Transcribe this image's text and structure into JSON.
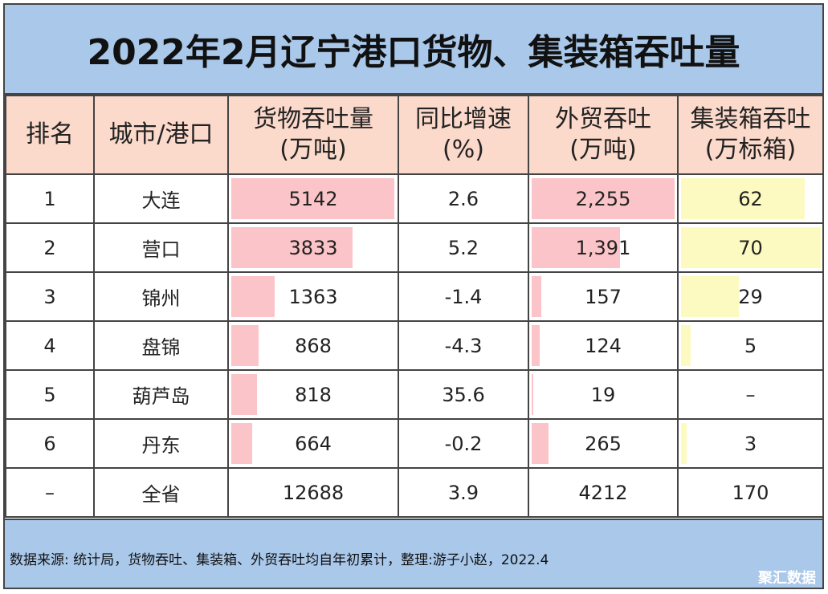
{
  "title": "2022年2月辽宁港口货物、集装箱吞吐量",
  "headers": {
    "rank": "排名",
    "city": "城市/港口",
    "cargo_l1": "货物吞吐量",
    "cargo_l2": "(万吨)",
    "growth_l1": "同比增速",
    "growth_l2": "(%)",
    "trade_l1": "外贸吞吐",
    "trade_l2": "(万吨)",
    "container_l1": "集装箱吞吐",
    "container_l2": "(万标箱)"
  },
  "rows": [
    {
      "rank": "1",
      "city": "大连",
      "cargo": "5142",
      "growth": "2.6",
      "trade": "2,255",
      "container": "62"
    },
    {
      "rank": "2",
      "city": "营口",
      "cargo": "3833",
      "growth": "5.2",
      "trade": "1,391",
      "container": "70"
    },
    {
      "rank": "3",
      "city": "锦州",
      "cargo": "1363",
      "growth": "-1.4",
      "trade": "157",
      "container": "29"
    },
    {
      "rank": "4",
      "city": "盘锦",
      "cargo": "868",
      "growth": "-4.3",
      "trade": "124",
      "container": "5"
    },
    {
      "rank": "5",
      "city": "葫芦岛",
      "cargo": "818",
      "growth": "35.6",
      "trade": "19",
      "container": "–"
    },
    {
      "rank": "6",
      "city": "丹东",
      "cargo": "664",
      "growth": "-0.2",
      "trade": "265",
      "container": "3"
    }
  ],
  "total": {
    "rank": "–",
    "city": "全省",
    "cargo": "12688",
    "growth": "3.9",
    "trade": "4212",
    "container": "170"
  },
  "footer": {
    "note": "数据来源: 统计局，货物吞吐、集装箱、外贸吞吐均自年初累计，整理:游子小赵，2022.4",
    "brand": "聚汇数据"
  },
  "colors": {
    "header_bg": "#fbd9cb",
    "title_bg": "#a9c8ea",
    "bar_red": "#fbc4c8",
    "bar_yellow": "#fcfac0",
    "positive": "#c23232",
    "negative": "#2e8b3e"
  },
  "chart_data": {
    "type": "table",
    "columns": [
      "排名",
      "城市/港口",
      "货物吞吐量(万吨)",
      "同比增速(%)",
      "外贸吞吐(万吨)",
      "集装箱吞吐(万标箱)"
    ],
    "cargo_values": [
      5142,
      3833,
      1363,
      868,
      818,
      664
    ],
    "trade_values": [
      2255,
      1391,
      157,
      124,
      19,
      265
    ],
    "container_values": [
      62,
      70,
      29,
      5,
      0,
      3
    ],
    "growth_values": [
      2.6,
      5.2,
      -1.4,
      -4.3,
      35.6,
      -0.2
    ]
  }
}
